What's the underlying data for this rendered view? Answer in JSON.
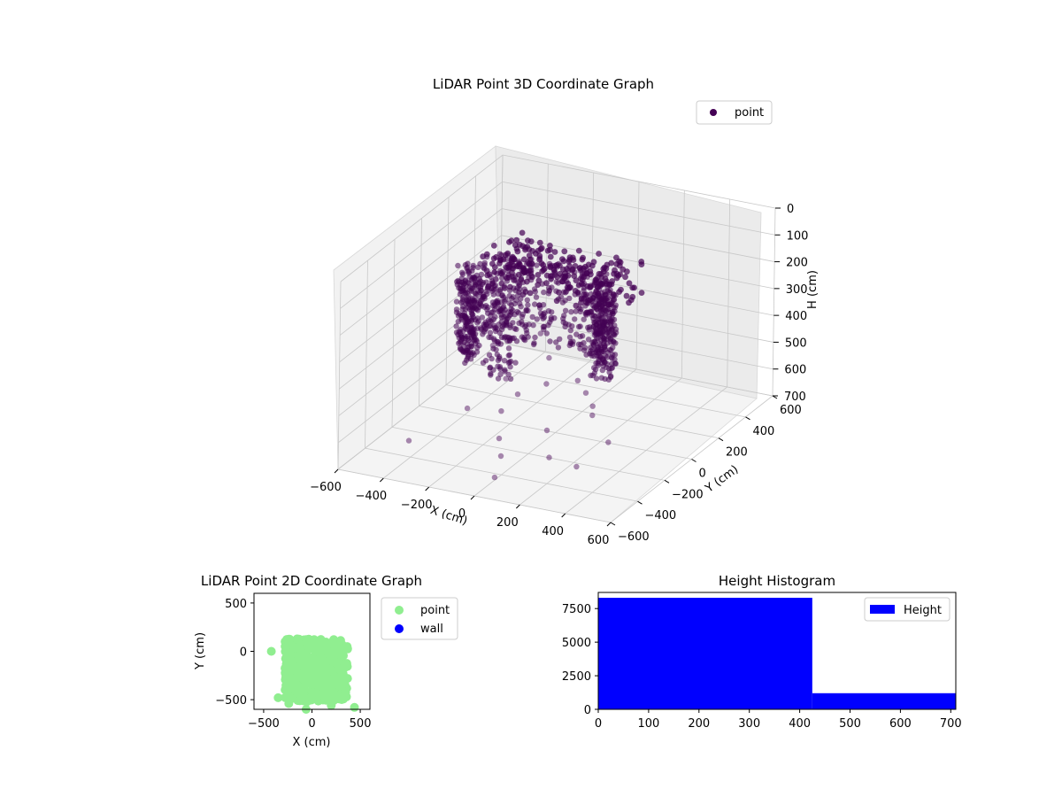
{
  "figure": {
    "background": "#ffffff"
  },
  "chart_data": [
    {
      "type": "scatter",
      "projection": "3d",
      "title": "LiDAR Point 3D Coordinate Graph",
      "xlabel": "X (cm)",
      "ylabel": "Y (cm)",
      "zlabel": "H (cm)",
      "xlim": [
        -600,
        600
      ],
      "ylim": [
        -600,
        600
      ],
      "zlim": [
        700,
        0
      ],
      "z_inverted": true,
      "xticks": [
        "−600",
        "−400",
        "−200",
        "0",
        "200",
        "400",
        "600"
      ],
      "yticks": [
        "−600",
        "−400",
        "−200",
        "0",
        "200",
        "400",
        "600"
      ],
      "zticks": [
        "0",
        "100",
        "200",
        "300",
        "400",
        "500",
        "600",
        "700"
      ],
      "grid": true,
      "legend": {
        "placement": "upper-right",
        "entries": [
          "point"
        ]
      },
      "series": [
        {
          "name": "point",
          "color": "#440154",
          "shape": "wrapped cylindrical surface of dense points with scattered outliers",
          "sample_points": [
            [
              -420,
              -380,
              650
            ],
            [
              -300,
              -150,
              600
            ],
            [
              -250,
              50,
              560
            ],
            [
              -180,
              -100,
              610
            ],
            [
              -100,
              -250,
              640
            ],
            [
              -50,
              -320,
              670
            ],
            [
              0,
              -450,
              690
            ],
            [
              80,
              -200,
              600
            ],
            [
              150,
              -300,
              650
            ],
            [
              220,
              -100,
              560
            ],
            [
              300,
              -350,
              640
            ],
            [
              350,
              -200,
              600
            ],
            [
              -350,
              120,
              480
            ],
            [
              -200,
              220,
              450
            ],
            [
              -120,
              150,
              500
            ],
            [
              60,
              60,
              520
            ],
            [
              120,
              20,
              540
            ],
            [
              180,
              -30,
              560
            ],
            [
              -150,
              -30,
              570
            ],
            [
              -60,
              30,
              540
            ]
          ]
        }
      ]
    },
    {
      "type": "scatter",
      "title": "LiDAR Point 2D Coordinate Graph",
      "xlabel": "X (cm)",
      "ylabel": "Y (cm)",
      "xlim": [
        -600,
        600
      ],
      "ylim": [
        -600,
        600
      ],
      "xticks": [
        "−500",
        "0",
        "500"
      ],
      "yticks": [
        "−500",
        "0",
        "500"
      ],
      "grid": false,
      "legend": {
        "placement": "outside-right",
        "entries": [
          "point",
          "wall"
        ]
      },
      "series": [
        {
          "name": "point",
          "color": "#90ee90",
          "region": {
            "x": [
              -280,
              370
            ],
            "y": [
              -520,
              130
            ]
          },
          "outliers": [
            [
              -420,
              0
            ],
            [
              440,
              -580
            ],
            [
              -240,
              -540
            ],
            [
              200,
              -560
            ],
            [
              -60,
              -600
            ],
            [
              -350,
              -480
            ],
            [
              300,
              -480
            ]
          ]
        },
        {
          "name": "wall",
          "color": "#0000ff",
          "points": []
        }
      ]
    },
    {
      "type": "bar",
      "subtype": "histogram",
      "title": "Height Histogram",
      "xlabel": "",
      "ylabel": "",
      "xlim": [
        0,
        710
      ],
      "ylim": [
        0,
        8700
      ],
      "xticks": [
        "0",
        "100",
        "200",
        "300",
        "400",
        "500",
        "600",
        "700"
      ],
      "yticks": [
        "0",
        "2500",
        "5000",
        "7500"
      ],
      "grid": false,
      "legend": {
        "placement": "upper-right",
        "entries": [
          "Height"
        ]
      },
      "series": [
        {
          "name": "Height",
          "color": "#0000ff",
          "bins": [
            {
              "x0": 0,
              "x1": 425,
              "value": 8300
            },
            {
              "x0": 425,
              "x1": 710,
              "value": 1200
            }
          ]
        }
      ]
    }
  ]
}
